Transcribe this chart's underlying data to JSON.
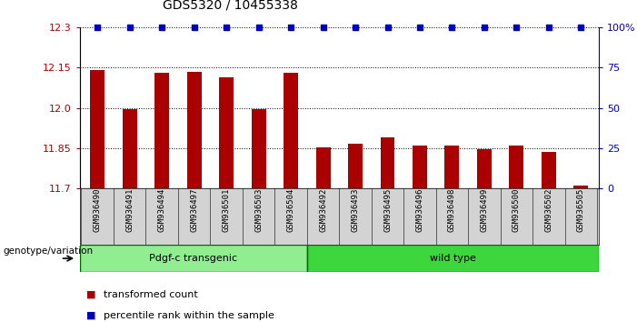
{
  "title": "GDS5320 / 10455338",
  "samples": [
    "GSM936490",
    "GSM936491",
    "GSM936494",
    "GSM936497",
    "GSM936501",
    "GSM936503",
    "GSM936504",
    "GSM936492",
    "GSM936493",
    "GSM936495",
    "GSM936496",
    "GSM936498",
    "GSM936499",
    "GSM936500",
    "GSM936502",
    "GSM936505"
  ],
  "bar_values": [
    12.14,
    11.995,
    12.13,
    12.135,
    12.115,
    11.995,
    12.13,
    11.852,
    11.865,
    11.89,
    11.858,
    11.858,
    11.845,
    11.858,
    11.837,
    11.712
  ],
  "groups": [
    {
      "label": "Pdgf-c transgenic",
      "count": 7,
      "color": "#90ee90"
    },
    {
      "label": "wild type",
      "count": 9,
      "color": "#3dd63d"
    }
  ],
  "ylim_left": [
    11.7,
    12.3
  ],
  "yticks_left": [
    11.7,
    11.85,
    12.0,
    12.15,
    12.3
  ],
  "ylim_right": [
    0,
    100
  ],
  "yticks_right": [
    0,
    25,
    50,
    75,
    100
  ],
  "yticklabels_right": [
    "0",
    "25",
    "50",
    "75",
    "100%"
  ],
  "bar_color": "#aa0000",
  "dot_color": "#0000bb",
  "bar_width": 0.45,
  "legend_items": [
    {
      "label": "transformed count",
      "color": "#aa0000"
    },
    {
      "label": "percentile rank within the sample",
      "color": "#0000bb"
    }
  ],
  "xlabel_area": "genotype/variation",
  "group_border_color": "#006600"
}
